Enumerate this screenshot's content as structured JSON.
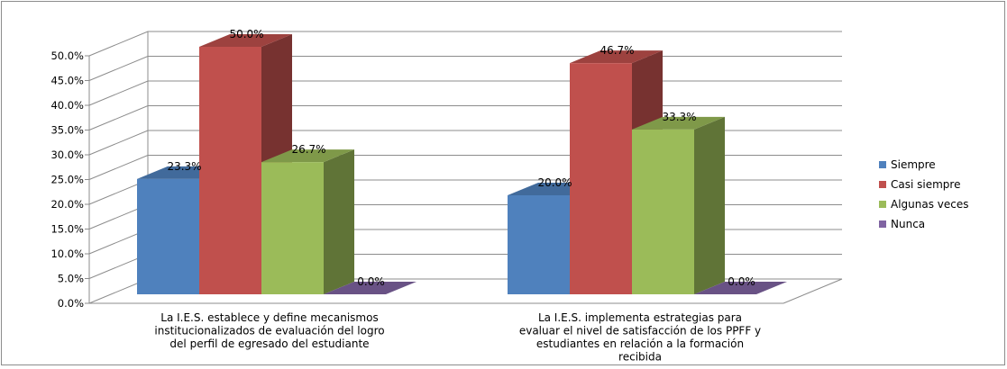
{
  "chart_data": {
    "type": "bar",
    "style": "3d-clustered-column",
    "categories": [
      [
        "La I.E.S. establece y define mecanismos",
        "institucionalizados de evaluación del logro",
        "del perfil de egresado del estudiante"
      ],
      [
        "La I.E.S. implementa estrategias para",
        "evaluar el nivel de satisfacción de los PPFF y",
        "estudiantes en relación a la formación",
        "recibida"
      ]
    ],
    "series": [
      {
        "name": "Siempre",
        "color": "#4F81BD",
        "values": [
          23.3,
          20.0
        ],
        "labels": [
          "23.3%",
          "20.0%"
        ]
      },
      {
        "name": "Casi siempre",
        "color": "#C0504D",
        "values": [
          50.0,
          46.7
        ],
        "labels": [
          "50.0%",
          "46.7%"
        ]
      },
      {
        "name": "Algunas veces",
        "color": "#9BBB59",
        "values": [
          26.7,
          33.3
        ],
        "labels": [
          "26.7%",
          "33.3%"
        ]
      },
      {
        "name": "Nunca",
        "color": "#8064A2",
        "values": [
          0.0,
          0.0
        ],
        "labels": [
          "0.0%",
          "0.0%"
        ]
      }
    ],
    "y_ticks": [
      "0.0%",
      "5.0%",
      "10.0%",
      "15.0%",
      "20.0%",
      "25.0%",
      "30.0%",
      "35.0%",
      "40.0%",
      "45.0%",
      "50.0%"
    ],
    "ylim": [
      0,
      50
    ],
    "grid": true,
    "legend": "right"
  }
}
